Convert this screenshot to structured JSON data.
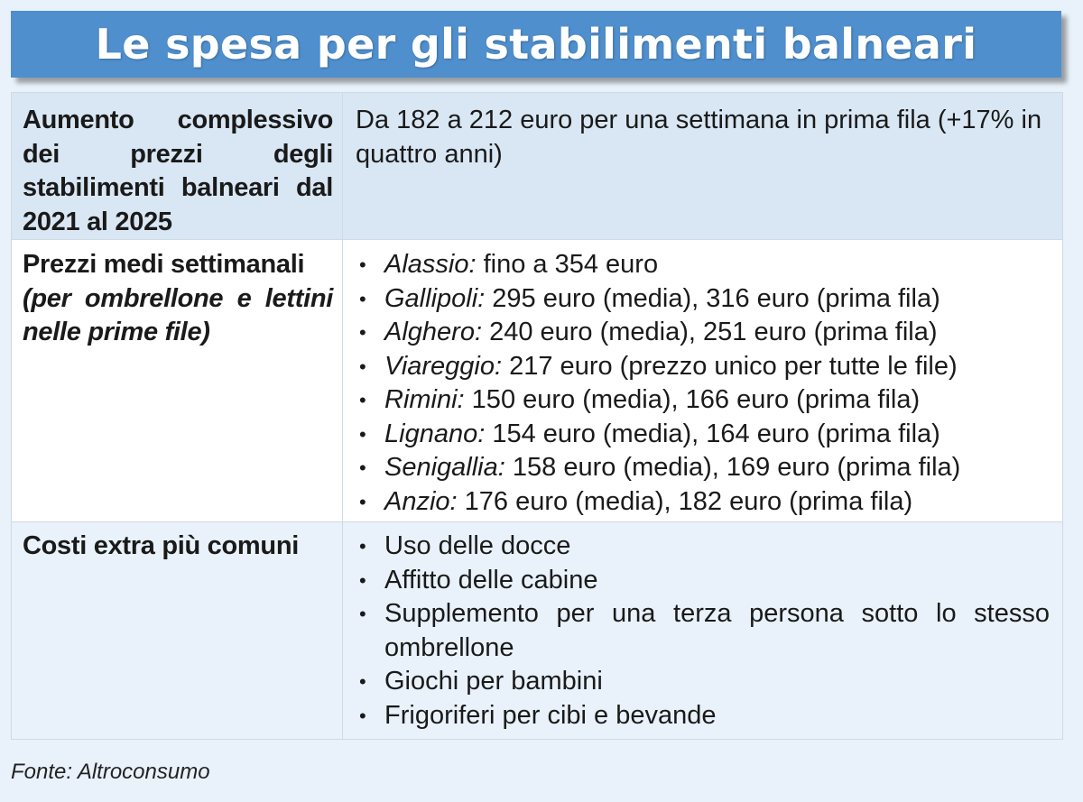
{
  "title": "Le spesa per gli stabilimenti balneari",
  "rows": [
    {
      "label": "Aumento complessivo dei prezzi degli stabilimenti balneari dal 2021 al 2025",
      "value": "Da 182 a 212 euro per una settimana in prima fila (+17% in quattro anni)"
    },
    {
      "label": "Prezzi medi settimanali",
      "label_sub": "(per ombrellone e lettini nelle prime file)",
      "items": [
        {
          "city": "Alassio:",
          "text": " fino a 354 euro"
        },
        {
          "city": "Gallipoli:",
          "text": " 295 euro (media), 316 euro (prima fila)"
        },
        {
          "city": "Alghero:",
          "text": " 240 euro (media), 251 euro (prima fila)"
        },
        {
          "city": "Viareggio:",
          "text": " 217 euro (prezzo unico per tutte le file)"
        },
        {
          "city": "Rimini:",
          "text": " 150 euro (media), 166 euro (prima fila)"
        },
        {
          "city": "Lignano:",
          "text": " 154 euro (media), 164 euro (prima fila)"
        },
        {
          "city": "Senigallia:",
          "text": " 158 euro (media), 169 euro (prima fila)"
        },
        {
          "city": "Anzio:",
          "text": " 176 euro (media), 182 euro (prima fila)"
        }
      ]
    },
    {
      "label": "Costi extra più comuni",
      "items": [
        "Uso delle docce",
        "Affitto delle cabine",
        "Supplemento per una terza persona sotto lo stesso ombrellone",
        "Giochi per bambini",
        "Frigoriferi per cibi e bevande"
      ]
    }
  ],
  "source": "Fonte: Altroconsumo",
  "colors": {
    "title_bg": "#4f8fcd",
    "row1_bg": "#d9e7f4",
    "row2_bg": "#ffffff",
    "row3_bg": "#e9f2fa"
  }
}
